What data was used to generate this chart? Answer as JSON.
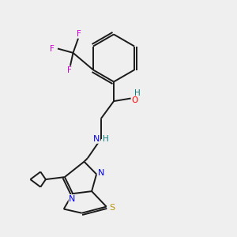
{
  "bg_color": "#efefef",
  "bond_color": "#1a1a1a",
  "atom_colors": {
    "N": "#0000ee",
    "S": "#b8960c",
    "O": "#ff0000",
    "F": "#cc00cc",
    "H_label": "#008080",
    "C": "#1a1a1a"
  },
  "lw": 1.4
}
